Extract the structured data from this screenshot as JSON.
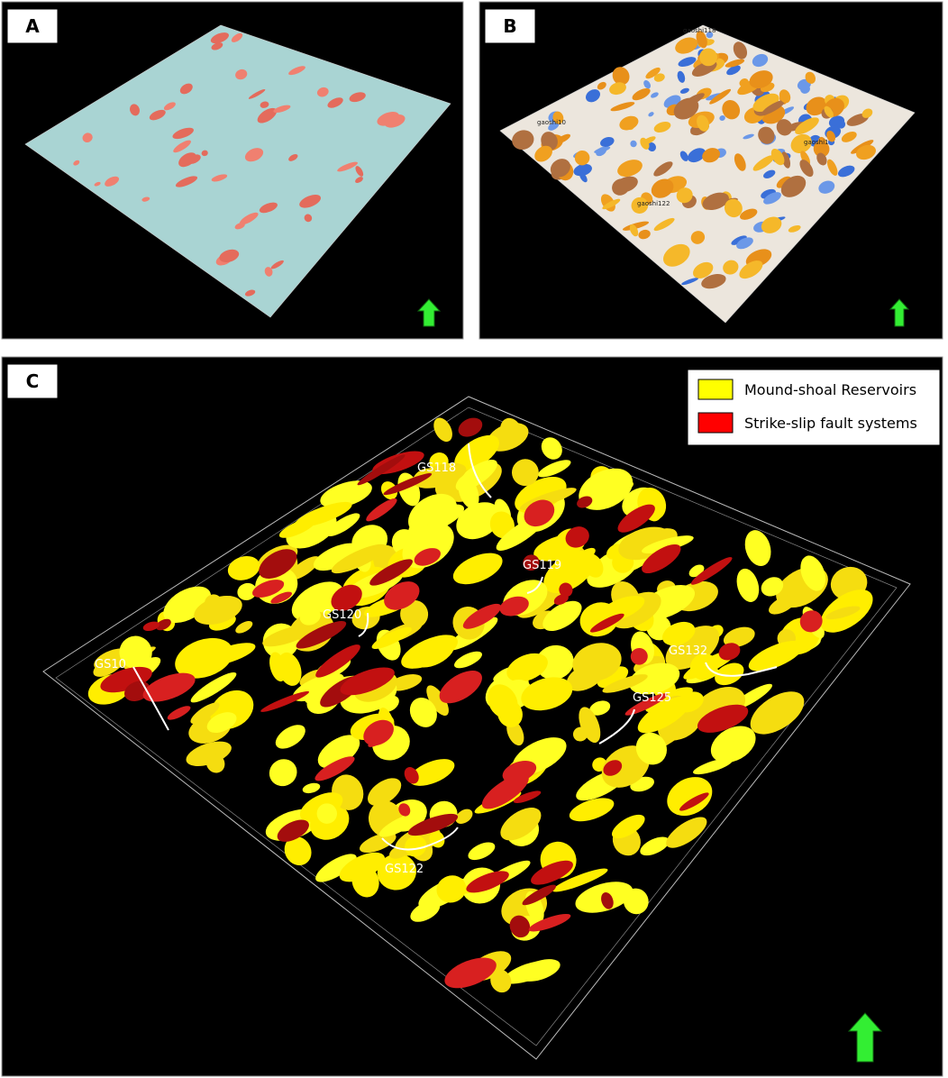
{
  "panels": [
    {
      "label": "A"
    },
    {
      "label": "B",
      "well_labels": [
        "gaoshi118",
        "gaoshi10",
        "gaoshi1",
        "gaoshi122"
      ]
    },
    {
      "label": "C",
      "legend": [
        "Mound-shoal Reservoirs",
        "Strike-slip fault systems"
      ],
      "well_labels": [
        "GS118",
        "GS119",
        "GS120",
        "GS10",
        "GS132",
        "GS125",
        "GS122"
      ]
    }
  ]
}
